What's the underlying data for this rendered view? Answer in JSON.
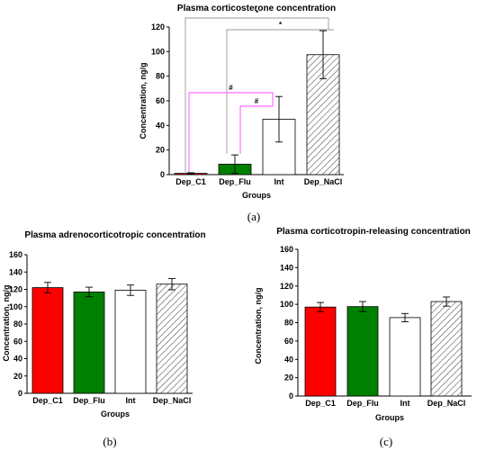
{
  "colors": {
    "Dep_C1": "#ff0000",
    "Dep_Flu": "#008000",
    "Int": "#ffffff",
    "Dep_NaCl": "hatch",
    "bracket_star": "#999999",
    "bracket_hash": "#ff44ff"
  },
  "chart_data": [
    {
      "type": "bar",
      "title": "Plasma corticosterone concentration",
      "xlabel": "Groups",
      "ylabel": "Concentration, ng/g",
      "categories": [
        "Dep_C1",
        "Dep_Flu",
        "Int",
        "Dep_NaCl"
      ],
      "values": [
        1,
        8.5,
        45,
        97.5
      ],
      "errors": [
        0.5,
        7.5,
        18.5,
        19.5
      ],
      "ylim": [
        0,
        120
      ],
      "yticks": [
        "0",
        "20",
        "40",
        "60",
        "80",
        "100",
        "120"
      ],
      "caption": "(a)",
      "annotations": [
        {
          "from": "Dep_C1",
          "to": "Dep_NaCl",
          "label": "*",
          "color": "gray"
        },
        {
          "from": "Dep_Flu",
          "to": "Dep_NaCl",
          "label": "*",
          "color": "gray"
        },
        {
          "from": "Dep_C1",
          "to": "Int",
          "label": "#",
          "color": "magenta"
        },
        {
          "from": "Dep_Flu",
          "to": "Int",
          "label": "#",
          "color": "magenta"
        }
      ]
    },
    {
      "type": "bar",
      "title": "Plasma adrenocorticotropic concentration",
      "xlabel": "Groups",
      "ylabel": "Concentration, ng/g",
      "categories": [
        "Dep_C1",
        "Dep_Flu",
        "Int",
        "Dep_NaCl"
      ],
      "values": [
        122,
        117,
        119,
        126
      ],
      "errors": [
        6,
        5.5,
        6,
        6.5
      ],
      "ylim": [
        0,
        160
      ],
      "yticks": [
        "0",
        "20",
        "40",
        "60",
        "80",
        "100",
        "120",
        "140",
        "160"
      ],
      "caption": "(b)"
    },
    {
      "type": "bar",
      "title": "Plasma corticotropin-releasing  concentration",
      "xlabel": "Groups",
      "ylabel": "Concentration, ng/g",
      "categories": [
        "Dep_C1",
        "Dep_Flu",
        "Int",
        "Dep_NaCl"
      ],
      "values": [
        97,
        97.5,
        85.5,
        103
      ],
      "errors": [
        5,
        5.5,
        4.5,
        5
      ],
      "ylim": [
        0,
        160
      ],
      "yticks": [
        "0",
        "20",
        "40",
        "60",
        "80",
        "100",
        "120",
        "140",
        "160"
      ],
      "caption": "(c)"
    }
  ]
}
